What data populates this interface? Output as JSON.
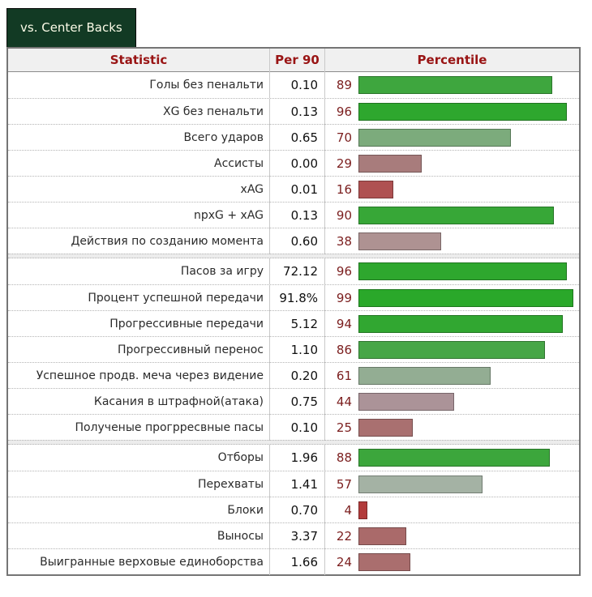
{
  "tab": {
    "label": "vs. Center Backs"
  },
  "colors": {
    "tab_bg": "#123a24",
    "tab_text": "#fcfce8",
    "header_bg": "#f0f0f0",
    "header_text": "#991414",
    "percentile_number": "#7b1e1e",
    "table_border": "#757575",
    "bright_green": "#2aa82a",
    "bright_red": "#b23b3b"
  },
  "chart_data": {
    "type": "table",
    "title": "vs. Center Backs",
    "columns": [
      "Statistic",
      "Per 90",
      "Percentile"
    ],
    "percentile_axis": [
      0,
      100
    ],
    "groups": [
      {
        "rows": [
          {
            "stat": "Голы без пенальти",
            "per90": "0.10",
            "pct": 89,
            "color": "#3ea63e"
          },
          {
            "stat": "XG без пенальти",
            "per90": "0.13",
            "pct": 96,
            "color": "#2ea72e"
          },
          {
            "stat": "Всего ударов",
            "per90": "0.65",
            "pct": 70,
            "color": "#7cab7c"
          },
          {
            "stat": "Ассисты",
            "per90": "0.00",
            "pct": 29,
            "color": "#a87c7c"
          },
          {
            "stat": "xAG",
            "per90": "0.01",
            "pct": 16,
            "color": "#af5152"
          },
          {
            "stat": "npxG + xAG",
            "per90": "0.13",
            "pct": 90,
            "color": "#37a737"
          },
          {
            "stat": "Действия по созданию момента",
            "per90": "0.60",
            "pct": 38,
            "color": "#ae9292"
          }
        ]
      },
      {
        "rows": [
          {
            "stat": "Пасов за игру",
            "per90": "72.12",
            "pct": 96,
            "color": "#2ea72e"
          },
          {
            "stat": "Процент успешной передачи",
            "per90": "91.8%",
            "pct": 99,
            "color": "#2aa82a"
          },
          {
            "stat": "Прогрессивные передачи",
            "per90": "5.12",
            "pct": 94,
            "color": "#31a731"
          },
          {
            "stat": "Прогрессивный перенос",
            "per90": "1.10",
            "pct": 86,
            "color": "#47a647"
          },
          {
            "stat": "Успешное продв. меча через видение",
            "per90": "0.20",
            "pct": 61,
            "color": "#93ad93"
          },
          {
            "stat": "Касания в штрафной(атака)",
            "per90": "0.75",
            "pct": 44,
            "color": "#ab9398"
          },
          {
            "stat": "Полученые прогрресвные пасы",
            "per90": "0.10",
            "pct": 25,
            "color": "#a97070"
          }
        ]
      },
      {
        "rows": [
          {
            "stat": "Отборы",
            "per90": "1.96",
            "pct": 88,
            "color": "#3ca63c"
          },
          {
            "stat": "Перехваты",
            "per90": "1.41",
            "pct": 57,
            "color": "#a4b2a4"
          },
          {
            "stat": "Блоки",
            "per90": "0.70",
            "pct": 4,
            "color": "#b23b3b"
          },
          {
            "stat": "Выносы",
            "per90": "3.37",
            "pct": 22,
            "color": "#aa6a6a"
          },
          {
            "stat": "Выигранные верховые единоборства",
            "per90": "1.66",
            "pct": 24,
            "color": "#aa6e6e"
          }
        ]
      }
    ]
  }
}
